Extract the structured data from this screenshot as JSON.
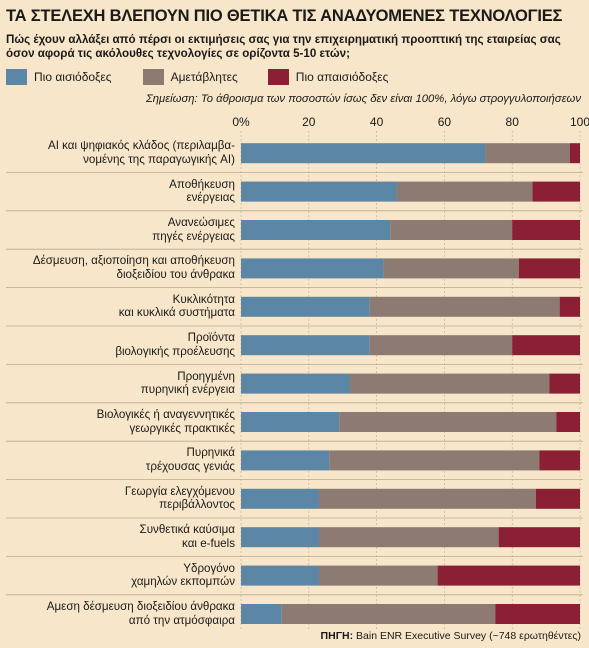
{
  "title": "ΤΑ ΣΤΕΛΕΧΗ ΒΛΕΠΟΥΝ ΠΙΟ ΘΕΤΙΚΑ ΤΙΣ ΑΝΑΔΥΟΜΕΝΕΣ ΤΕΧΝΟΛΟΓΙΕΣ",
  "subtitle": "Πώς έχουν αλλάξει από πέρσι οι εκτιμήσεις σας για την επιχειρηματική προοπτική της εταιρείας σας όσον αφορά τις ακόλουθες τεχνολογίες σε ορίζοντα 5-10 ετών;",
  "note": "Σημείωση: Το άθροισμα των ποσοστών ίσως δεν είναι 100%, λόγω στρογγυλοποιήσεων",
  "source_label": "ΠΗΓΗ:",
  "source_text": " Bain ENR Executive Survey (~748 ερωτηθέντες)",
  "chart_data": {
    "type": "bar",
    "orientation": "horizontal",
    "stacked": true,
    "xlim": [
      0,
      100
    ],
    "x_ticks": [
      0,
      20,
      40,
      60,
      80,
      100
    ],
    "x_tick_labels": [
      "0%",
      "20",
      "40",
      "60",
      "80",
      "100"
    ],
    "grid": true,
    "legend_position": "top-left",
    "categories": [
      "AI και ψηφιακός κλάδος (περιλαμβα-\nνομένης της παραγωγικής AI)",
      "Αποθήκευση\nενέργειας",
      "Ανανεώσιμες\nπηγές ενέργειας",
      "Δέσμευση, αξιοποίηση και αποθήκευση\nδιοξειδίου του άνθρακα",
      "Κυκλικότητα\nκαι κυκλικά συστήματα",
      "Προϊόντα\nβιολογικής προέλευσης",
      "Προηγμένη\nπυρηνική ενέργεια",
      "Βιολογικές ή αναγεννητικές\nγεωργικές πρακτικές",
      "Πυρηνικά\nτρέχουσας γενιάς",
      "Γεωργία ελεγχόμενου\nπεριβάλλοντος",
      "Συνθετικά καύσιμα\nκαι e-fuels",
      "Υδρογόνο\nχαμηλών εκπομπών",
      "Αμεση δέσμευση διοξειδίου άνθρακα\nαπό την ατμόσφαιρα"
    ],
    "series": [
      {
        "name": "Πιο αισιόδοξες",
        "color": "#5b86a5",
        "values": [
          72,
          46,
          44,
          42,
          38,
          38,
          32,
          29,
          26,
          23,
          23,
          23,
          12
        ]
      },
      {
        "name": "Αμετάβλητες",
        "color": "#8c7a73",
        "values": [
          25,
          40,
          36,
          40,
          56,
          42,
          59,
          64,
          62,
          64,
          53,
          35,
          63
        ]
      },
      {
        "name": "Πιο απαισιόδοξες",
        "color": "#8b1f33",
        "values": [
          3,
          14,
          20,
          18,
          6,
          20,
          9,
          7,
          12,
          13,
          24,
          42,
          25
        ]
      }
    ]
  }
}
